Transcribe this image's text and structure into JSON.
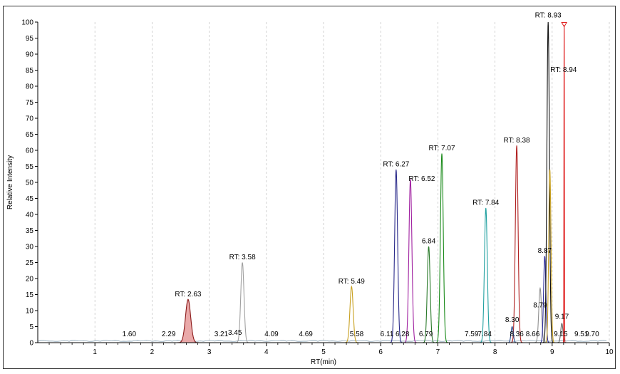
{
  "chart_data": {
    "type": "line",
    "title": "",
    "xlabel": "RT(min)",
    "ylabel": "Relative Intensity",
    "xlim": [
      0,
      10
    ],
    "ylim": [
      0,
      100
    ],
    "x_ticks": [
      "1",
      "2",
      "3",
      "4",
      "5",
      "6",
      "7",
      "8",
      "9",
      "10"
    ],
    "y_ticks": [
      "0",
      "5",
      "10",
      "15",
      "20",
      "25",
      "30",
      "35",
      "40",
      "45",
      "50",
      "55",
      "60",
      "65",
      "70",
      "75",
      "80",
      "85",
      "90",
      "95",
      "100"
    ],
    "grid": true,
    "peaks": [
      {
        "rt": 2.63,
        "height": 13.5,
        "width": 0.045,
        "color": "#8b1a1a",
        "fill": "#e8a0a0"
      },
      {
        "rt": 3.58,
        "height": 25,
        "width": 0.028,
        "color": "#a0a0a0"
      },
      {
        "rt": 5.49,
        "height": 17.5,
        "width": 0.028,
        "color": "#c8a020"
      },
      {
        "rt": 6.27,
        "height": 54,
        "width": 0.026,
        "color": "#2a2a8a"
      },
      {
        "rt": 6.52,
        "height": 51,
        "width": 0.026,
        "color": "#a020a0"
      },
      {
        "rt": 6.84,
        "height": 30,
        "width": 0.025,
        "color": "#2a7a2a"
      },
      {
        "rt": 7.07,
        "height": 59,
        "width": 0.025,
        "color": "#1a8a1a"
      },
      {
        "rt": 7.84,
        "height": 42,
        "width": 0.025,
        "color": "#20a0a0"
      },
      {
        "rt": 8.38,
        "height": 61.5,
        "width": 0.024,
        "color": "#b02020"
      },
      {
        "rt": 8.3,
        "height": 5,
        "width": 0.02,
        "color": "#2a4a8a"
      },
      {
        "rt": 8.79,
        "height": 17,
        "width": 0.024,
        "color": "#909090"
      },
      {
        "rt": 8.87,
        "height": 27,
        "width": 0.02,
        "color": "#3030a0"
      },
      {
        "rt": 8.93,
        "height": 100,
        "width": 0.022,
        "color": "#111111"
      },
      {
        "rt": 8.96,
        "height": 54,
        "width": 0.02,
        "color": "#c8a020"
      },
      {
        "rt": 9.17,
        "height": 6,
        "width": 0.02,
        "color": "#606060"
      },
      {
        "rt": 9.21,
        "height": 99,
        "width": 0.004,
        "color": "#e02020"
      }
    ],
    "annotations": [
      {
        "text": "1.60",
        "x": 1.6,
        "y": 2
      },
      {
        "text": "2.29",
        "x": 2.29,
        "y": 2
      },
      {
        "text": "RT: 2.63",
        "x": 2.63,
        "y": 14.5
      },
      {
        "text": "3.21",
        "x": 3.21,
        "y": 2
      },
      {
        "text": "3.45",
        "x": 3.45,
        "y": 2.5
      },
      {
        "text": "RT: 3.58",
        "x": 3.58,
        "y": 26
      },
      {
        "text": "4.09",
        "x": 4.09,
        "y": 2
      },
      {
        "text": "4.69",
        "x": 4.69,
        "y": 2
      },
      {
        "text": "RT: 5.49",
        "x": 5.49,
        "y": 18.5
      },
      {
        "text": "5.58",
        "x": 5.58,
        "y": 2
      },
      {
        "text": "6.11",
        "x": 6.11,
        "y": 2
      },
      {
        "text": "RT: 6.27",
        "x": 6.27,
        "y": 55
      },
      {
        "text": "6.28",
        "x": 6.38,
        "y": 2
      },
      {
        "text": "RT: 6.52",
        "x": 6.72,
        "y": 50.5
      },
      {
        "text": "6.79",
        "x": 6.79,
        "y": 2
      },
      {
        "text": "6.84",
        "x": 6.84,
        "y": 31
      },
      {
        "text": "RT: 7.07",
        "x": 7.07,
        "y": 60
      },
      {
        "text": "7.59",
        "x": 7.59,
        "y": 2
      },
      {
        "text": "7.84",
        "x": 7.82,
        "y": 2
      },
      {
        "text": "RT: 7.84",
        "x": 7.84,
        "y": 43
      },
      {
        "text": "8.30",
        "x": 8.3,
        "y": 6.5
      },
      {
        "text": "8.36",
        "x": 8.38,
        "y": 2
      },
      {
        "text": "RT: 8.38",
        "x": 8.38,
        "y": 62.5
      },
      {
        "text": "8.66",
        "x": 8.66,
        "y": 2
      },
      {
        "text": "8.79",
        "x": 8.79,
        "y": 11
      },
      {
        "text": "8.87",
        "x": 8.87,
        "y": 28
      },
      {
        "text": "RT: 8.93",
        "x": 8.93,
        "y": 101.5
      },
      {
        "text": "RT: 8.94",
        "x": 9.2,
        "y": 84.5
      },
      {
        "text": "9.17",
        "x": 9.17,
        "y": 7.5
      },
      {
        "text": "9.15",
        "x": 9.15,
        "y": 2
      },
      {
        "text": "9.51",
        "x": 9.51,
        "y": 2
      },
      {
        "text": "9.70",
        "x": 9.7,
        "y": 2
      }
    ]
  }
}
